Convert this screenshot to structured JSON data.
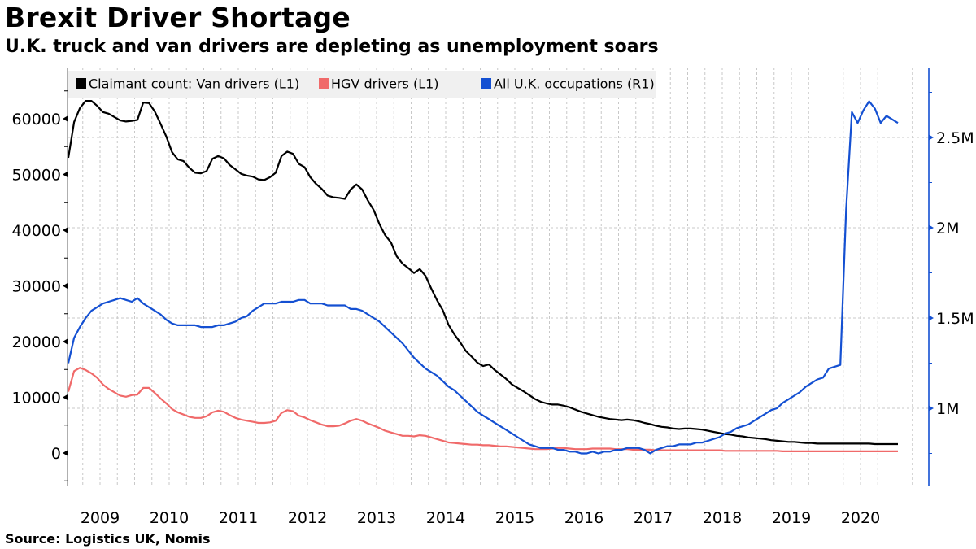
{
  "header": {
    "title": "Brexit Driver Shortage",
    "subtitle": "U.K. truck and van drivers are depleting as unemployment soars"
  },
  "footer": {
    "source": "Source:  Logistics UK, Nomis"
  },
  "chart_data": {
    "type": "line",
    "title": "Brexit Driver Shortage",
    "subtitle": "U.K. truck and van drivers are depleting as unemployment soars",
    "xlabel": "",
    "ylabel_left": "",
    "ylabel_right": "",
    "x_start": "2009-01",
    "x_frequency": "monthly",
    "x_tick_labels": [
      "2009",
      "2010",
      "2011",
      "2012",
      "2013",
      "2014",
      "2015",
      "2016",
      "2017",
      "2018",
      "2019",
      "2020"
    ],
    "y_left": {
      "ticks": [
        0,
        10000,
        20000,
        30000,
        40000,
        50000,
        60000
      ],
      "tick_labels": [
        "0",
        "10000",
        "20000",
        "30000",
        "40000",
        "50000",
        "60000"
      ],
      "range": [
        -5500,
        69000
      ]
    },
    "y_right": {
      "ticks": [
        1000000,
        1500000,
        2000000,
        2500000
      ],
      "tick_labels": [
        "1M",
        "1.5M",
        "2M",
        "2.5M"
      ],
      "range": [
        0.79,
        2.94
      ],
      "unit": "millions"
    },
    "grid": "on",
    "legend_position": "top-left",
    "legend": [
      {
        "label": "Claimant count: Van drivers (L1)",
        "color": "#000000"
      },
      {
        "label": "HGV drivers (L1)",
        "color": "#f06a6a"
      },
      {
        "label": "All U.K. occupations (R1)",
        "color": "#1450d2"
      }
    ],
    "series": [
      {
        "name": "Claimant count: Van drivers (L1)",
        "axis": "left",
        "color": "#000000",
        "values": [
          53000,
          59400,
          61900,
          63200,
          63200,
          62300,
          61200,
          60900,
          60300,
          59700,
          59500,
          59600,
          59800,
          62900,
          62800,
          61300,
          59100,
          56800,
          54000,
          52700,
          52400,
          51200,
          50300,
          50200,
          50600,
          52800,
          53300,
          52900,
          51700,
          50900,
          50100,
          49800,
          49600,
          49100,
          49000,
          49500,
          50300,
          53300,
          54100,
          53700,
          51900,
          51300,
          49500,
          48300,
          47400,
          46200,
          45900,
          45800,
          45600,
          47300,
          48200,
          47300,
          45300,
          43600,
          41100,
          39100,
          37800,
          35300,
          34000,
          33200,
          32300,
          33000,
          31800,
          29500,
          27400,
          25600,
          23000,
          21300,
          19900,
          18300,
          17300,
          16200,
          15600,
          15900,
          14900,
          14100,
          13300,
          12300,
          11700,
          11100,
          10400,
          9700,
          9200,
          8900,
          8700,
          8700,
          8500,
          8200,
          7800,
          7400,
          7100,
          6800,
          6500,
          6300,
          6100,
          6000,
          5900,
          6000,
          5900,
          5700,
          5400,
          5200,
          4900,
          4700,
          4600,
          4400,
          4300,
          4400,
          4400,
          4300,
          4200,
          4000,
          3800,
          3600,
          3400,
          3300,
          3100,
          3000,
          2800,
          2700,
          2600,
          2500,
          2300,
          2200,
          2100,
          2000,
          2000,
          1900,
          1800,
          1800,
          1700,
          1700,
          1700,
          1700,
          1700,
          1700,
          1700,
          1700,
          1700,
          1700,
          1600,
          1600,
          1600,
          1600,
          1600
        ]
      },
      {
        "name": "HGV drivers (L1)",
        "axis": "left",
        "color": "#f06a6a",
        "values": [
          11000,
          14700,
          15300,
          14900,
          14300,
          13500,
          12300,
          11500,
          10900,
          10300,
          10100,
          10400,
          10500,
          11700,
          11700,
          10800,
          9800,
          8900,
          7900,
          7300,
          6900,
          6500,
          6300,
          6300,
          6600,
          7300,
          7600,
          7400,
          6800,
          6300,
          6000,
          5800,
          5600,
          5400,
          5400,
          5500,
          5800,
          7200,
          7700,
          7500,
          6700,
          6400,
          5900,
          5500,
          5100,
          4800,
          4800,
          4900,
          5300,
          5800,
          6100,
          5800,
          5300,
          4900,
          4500,
          4000,
          3700,
          3400,
          3100,
          3100,
          3000,
          3200,
          3100,
          2800,
          2500,
          2200,
          1900,
          1800,
          1700,
          1600,
          1500,
          1500,
          1400,
          1400,
          1300,
          1200,
          1200,
          1100,
          1000,
          900,
          800,
          700,
          700,
          700,
          800,
          900,
          900,
          800,
          700,
          700,
          700,
          800,
          800,
          800,
          800,
          700,
          700,
          700,
          600,
          600,
          600,
          600,
          500,
          500,
          500,
          500,
          500,
          500,
          500,
          500,
          500,
          500,
          500,
          500,
          400,
          400,
          400,
          400,
          400,
          400,
          400,
          400,
          400,
          400,
          300,
          300,
          300,
          300,
          300,
          300,
          300,
          300,
          300,
          300,
          300,
          300,
          300,
          300,
          300,
          300,
          300,
          300,
          300,
          300,
          300
        ]
      },
      {
        "name": "All U.K. occupations (R1)",
        "axis": "right",
        "unit": "millions",
        "color": "#1450d2",
        "values": [
          1.25,
          1.39,
          1.45,
          1.5,
          1.54,
          1.56,
          1.58,
          1.59,
          1.6,
          1.61,
          1.6,
          1.59,
          1.61,
          1.58,
          1.56,
          1.54,
          1.52,
          1.49,
          1.47,
          1.46,
          1.46,
          1.46,
          1.46,
          1.45,
          1.45,
          1.45,
          1.46,
          1.46,
          1.47,
          1.48,
          1.5,
          1.51,
          1.54,
          1.56,
          1.58,
          1.58,
          1.58,
          1.59,
          1.59,
          1.59,
          1.6,
          1.6,
          1.58,
          1.58,
          1.58,
          1.57,
          1.57,
          1.57,
          1.57,
          1.55,
          1.55,
          1.54,
          1.52,
          1.5,
          1.48,
          1.45,
          1.42,
          1.39,
          1.36,
          1.32,
          1.28,
          1.25,
          1.22,
          1.2,
          1.18,
          1.15,
          1.12,
          1.1,
          1.07,
          1.04,
          1.01,
          0.98,
          0.96,
          0.94,
          0.92,
          0.9,
          0.88,
          0.86,
          0.84,
          0.82,
          0.8,
          0.79,
          0.78,
          0.78,
          0.78,
          0.77,
          0.77,
          0.76,
          0.76,
          0.75,
          0.75,
          0.76,
          0.75,
          0.76,
          0.76,
          0.77,
          0.77,
          0.78,
          0.78,
          0.78,
          0.77,
          0.75,
          0.77,
          0.78,
          0.79,
          0.79,
          0.8,
          0.8,
          0.8,
          0.81,
          0.81,
          0.82,
          0.83,
          0.84,
          0.86,
          0.87,
          0.89,
          0.9,
          0.91,
          0.93,
          0.95,
          0.97,
          0.99,
          1.0,
          1.03,
          1.05,
          1.07,
          1.09,
          1.12,
          1.14,
          1.16,
          1.17,
          1.22,
          1.23,
          1.24,
          2.1,
          2.64,
          2.58,
          2.65,
          2.7,
          2.66,
          2.58,
          2.62,
          2.6,
          2.58
        ]
      }
    ]
  }
}
